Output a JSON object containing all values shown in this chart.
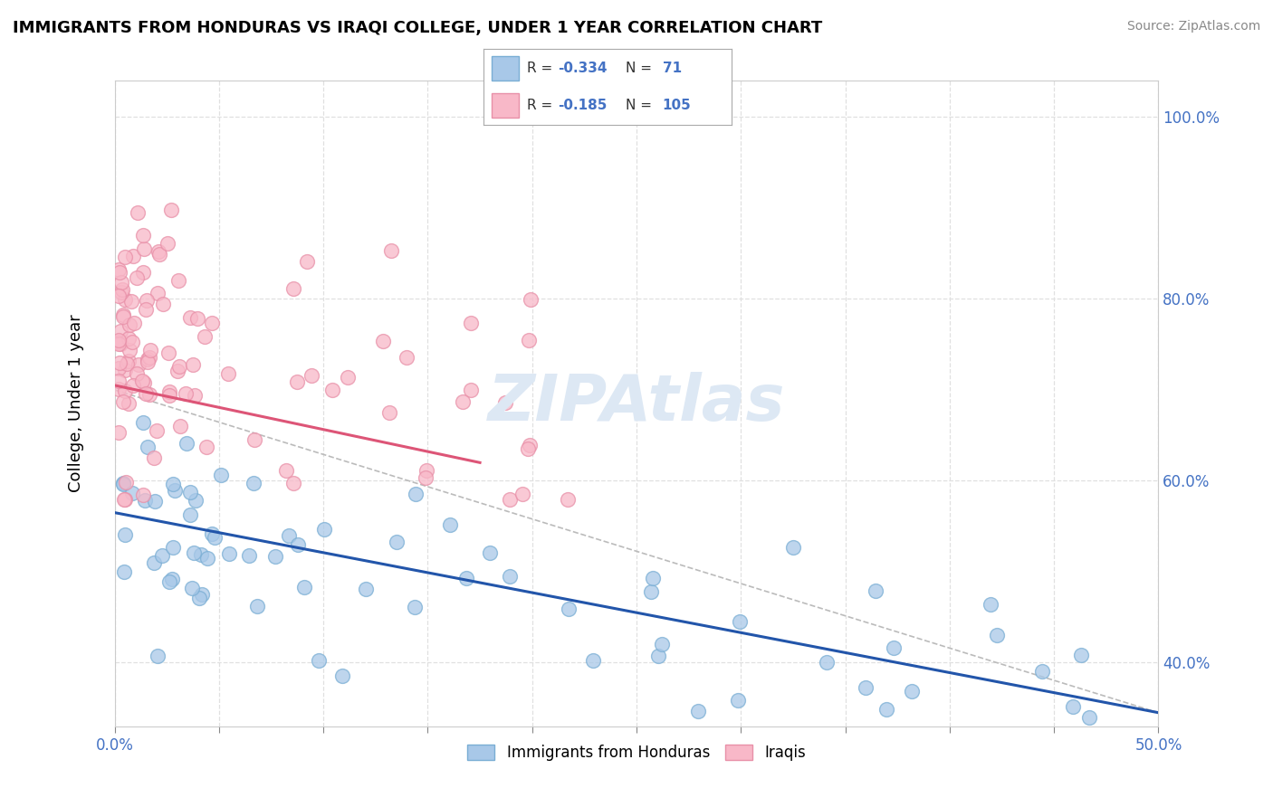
{
  "title": "IMMIGRANTS FROM HONDURAS VS IRAQI COLLEGE, UNDER 1 YEAR CORRELATION CHART",
  "source": "Source: ZipAtlas.com",
  "ylabel": "College, Under 1 year",
  "xlim": [
    0.0,
    0.5
  ],
  "ylim": [
    0.33,
    1.04
  ],
  "xticks": [
    0.0,
    0.05,
    0.1,
    0.15,
    0.2,
    0.25,
    0.3,
    0.35,
    0.4,
    0.45,
    0.5
  ],
  "xticklabels_show": [
    "0.0%",
    "",
    "",
    "",
    "",
    "",
    "",
    "",
    "",
    "",
    "50.0%"
  ],
  "yticks": [
    0.4,
    0.6,
    0.8,
    1.0
  ],
  "yticklabels": [
    "40.0%",
    "60.0%",
    "80.0%",
    "100.0%"
  ],
  "blue_color": "#a8c8e8",
  "blue_edge_color": "#7aaed4",
  "pink_color": "#f8b8c8",
  "pink_edge_color": "#e890a8",
  "blue_line_color": "#2255aa",
  "pink_line_color": "#dd5577",
  "dash_line_color": "#bbbbbb",
  "grid_color": "#e0e0e0",
  "tick_color": "#4472c4",
  "legend_text_color": "#4472c4",
  "watermark_color": "#dde8f4",
  "blue_line_x0": 0.0,
  "blue_line_y0": 0.565,
  "blue_line_x1": 0.5,
  "blue_line_y1": 0.345,
  "pink_line_x0": 0.0,
  "pink_line_y0": 0.705,
  "pink_line_x1": 0.175,
  "pink_line_y1": 0.62,
  "dash_line_x0": 0.0,
  "dash_line_y0": 0.7,
  "dash_line_x1": 0.5,
  "dash_line_y1": 0.345
}
